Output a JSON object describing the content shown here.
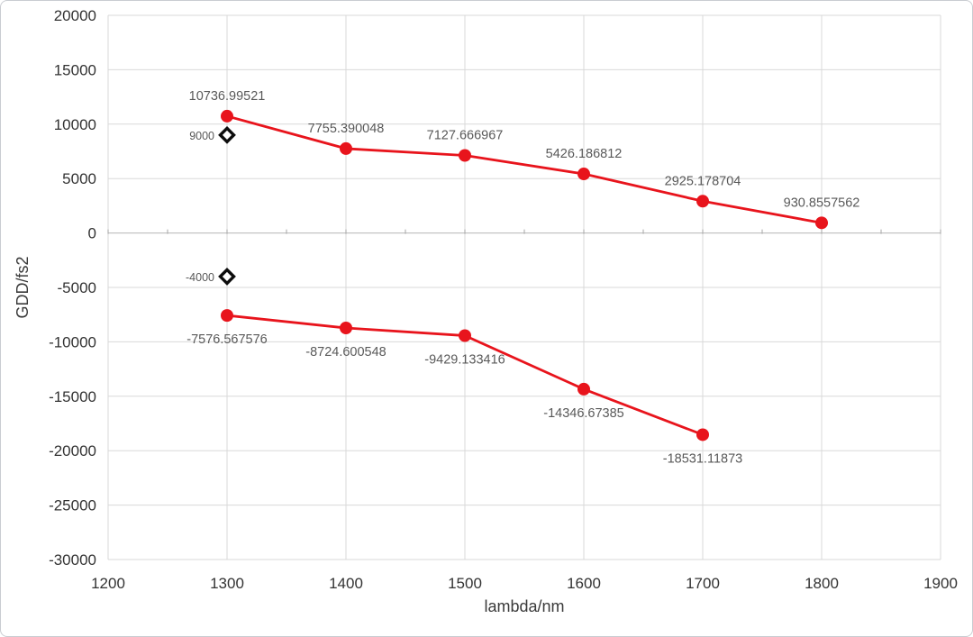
{
  "chart_data": {
    "type": "line",
    "title": "",
    "xlabel": "lambda/nm",
    "ylabel": "GDD/fs2",
    "xlim": [
      1200,
      1900
    ],
    "ylim": [
      -30000,
      20000
    ],
    "x_ticks": [
      1200,
      1300,
      1400,
      1500,
      1600,
      1700,
      1800,
      1900
    ],
    "y_ticks": [
      20000,
      15000,
      10000,
      5000,
      0,
      -5000,
      -10000,
      -15000,
      -20000,
      -25000,
      -30000
    ],
    "grid": true,
    "legend_position": "none",
    "zero_axis_minor_tick_step": 50,
    "series": [
      {
        "name": "gdd-positive-branch",
        "type": "line",
        "marker": "circle",
        "color": "#e8141c",
        "x": [
          1300,
          1400,
          1500,
          1600,
          1700,
          1800
        ],
        "y": [
          10736.99521,
          7755.390048,
          7127.666967,
          5426.186812,
          2925.178704,
          930.8557562
        ],
        "point_labels": [
          "10736.99521",
          "7755.390048",
          "7127.666967",
          "5426.186812",
          "2925.178704",
          "930.8557562"
        ],
        "label_position": "above"
      },
      {
        "name": "gdd-negative-branch",
        "type": "line",
        "marker": "circle",
        "color": "#e8141c",
        "x": [
          1300,
          1400,
          1500,
          1600,
          1700
        ],
        "y": [
          -7576.567576,
          -8724.600548,
          -9429.133416,
          -14346.67385,
          -18531.11873
        ],
        "point_labels": [
          "-7576.567576",
          "-8724.600548",
          "-9429.133416",
          "-14346.67385",
          "-18531.11873"
        ],
        "label_position": "below"
      },
      {
        "name": "target-gdd-points",
        "type": "scatter",
        "marker": "open-diamond",
        "color": "#0d0d0d",
        "x": [
          1300,
          1300
        ],
        "y": [
          9000,
          -4000
        ],
        "point_labels": [
          "9000",
          "-4000"
        ],
        "label_position": "left"
      }
    ],
    "colors": {
      "grid": "#d9d9d9",
      "zero_axis": "#bdbdbd",
      "minor_tick": "#a6a6a6",
      "tick_label": "#333333",
      "data_label": "#595959",
      "axis_title": "#3a3a3a"
    }
  }
}
